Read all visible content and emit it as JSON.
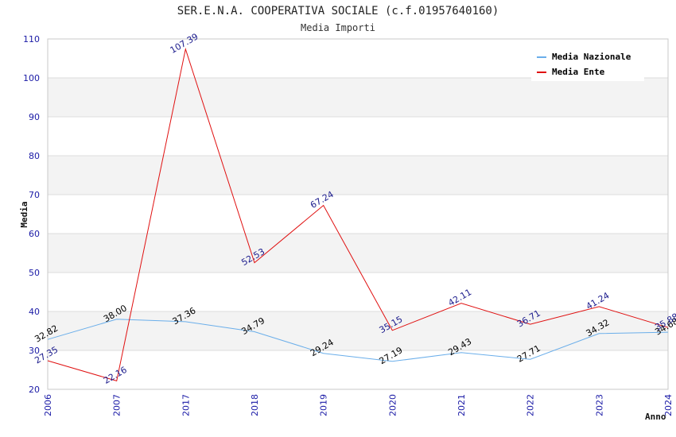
{
  "chart_data": {
    "type": "line",
    "title": "SER.E.N.A. COOPERATIVA SOCIALE (c.f.01957640160)",
    "subtitle": "Media Importi",
    "xlabel": "Anno",
    "ylabel": "Media",
    "categories": [
      "2006",
      "2007",
      "2017",
      "2018",
      "2019",
      "2020",
      "2021",
      "2022",
      "2023",
      "2024"
    ],
    "ylim": [
      20,
      110
    ],
    "yticks": [
      20,
      30,
      40,
      50,
      60,
      70,
      80,
      90,
      100,
      110
    ],
    "grid": true,
    "legend_position": "top-right",
    "series": [
      {
        "name": "Media Nazionale",
        "color": "#6aaeea",
        "label_color": "#000000",
        "values": [
          32.82,
          38.0,
          37.36,
          34.79,
          29.24,
          27.19,
          29.43,
          27.71,
          34.32,
          34.68
        ],
        "labels": [
          "32.82",
          "38.00",
          "37.36",
          "34.79",
          "29.24",
          "27.19",
          "29.43",
          "27.71",
          "34.32",
          "34.68"
        ]
      },
      {
        "name": "Media Ente",
        "color": "#e01010",
        "label_color": "#1a1a8c",
        "values": [
          27.35,
          22.16,
          107.39,
          52.53,
          67.24,
          35.15,
          42.11,
          36.71,
          41.24,
          35.88
        ],
        "labels": [
          "27.35",
          "22.16",
          "107.39",
          "52.53",
          "67.24",
          "35.15",
          "42.11",
          "36.71",
          "41.24",
          "35.88"
        ]
      }
    ]
  }
}
